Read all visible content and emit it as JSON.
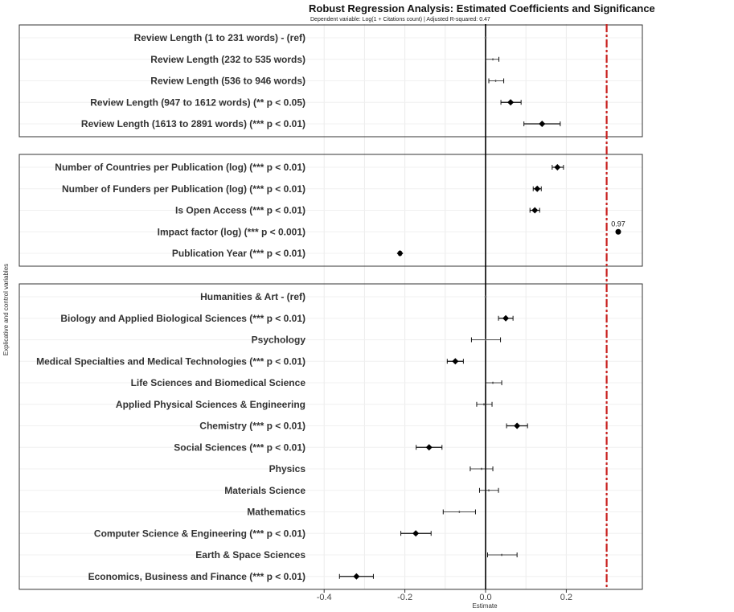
{
  "chart_data": {
    "type": "scatter",
    "title": "Robust Regression Analysis: Estimated Coefficients and Significance",
    "subtitle": "Dependent variable: Log(1 + Citations count) | Adjusted R-squared: 0.47",
    "xlabel": "Estimate",
    "ylabel": "Explicative and control variables",
    "xlim": [
      -0.4,
      0.38
    ],
    "xticks": [
      "-0.4",
      "-0.2",
      "0.0",
      "0.2"
    ],
    "reference_line": {
      "x": 0.3,
      "color": "#c8201e",
      "style": "dashed"
    },
    "grid": true,
    "groups": [
      {
        "rows": [
          {
            "label": "Review Length (1 to 231 words) - (ref)",
            "estimate": 0.0,
            "low": 0.0,
            "high": 0.0,
            "significant": false
          },
          {
            "label": "Review Length (232 to 535 words)",
            "estimate": 0.018,
            "low": 0.0,
            "high": 0.033,
            "significant": false
          },
          {
            "label": "Review Length (536 to 946 words)",
            "estimate": 0.025,
            "low": 0.008,
            "high": 0.045,
            "significant": false
          },
          {
            "label": "Review Length (947 to 1612 words) (** p < 0.05)",
            "estimate": 0.062,
            "low": 0.038,
            "high": 0.088,
            "significant": true
          },
          {
            "label": "Review Length (1613 to 2891 words) (*** p < 0.01)",
            "estimate": 0.14,
            "low": 0.095,
            "high": 0.185,
            "significant": true
          }
        ]
      },
      {
        "rows": [
          {
            "label": "Number of Countries per Publication (log) (*** p < 0.01)",
            "estimate": 0.178,
            "low": 0.165,
            "high": 0.193,
            "significant": true
          },
          {
            "label": "Number of Funders per Publication (log) (*** p < 0.01)",
            "estimate": 0.128,
            "low": 0.118,
            "high": 0.138,
            "significant": true
          },
          {
            "label": "Is Open Access (*** p < 0.01)",
            "estimate": 0.122,
            "low": 0.11,
            "high": 0.134,
            "significant": true
          },
          {
            "label": "Impact factor (log) (*** p < 0.001)",
            "estimate": 0.97,
            "low": 0.97,
            "high": 0.97,
            "significant": true,
            "annotation": "0.97",
            "clipped": true
          },
          {
            "label": "Publication Year (*** p < 0.01)",
            "estimate": -0.212,
            "low": -0.215,
            "high": -0.209,
            "significant": true
          }
        ]
      },
      {
        "rows": [
          {
            "label": "Humanities & Art - (ref)",
            "estimate": 0.0,
            "low": 0.0,
            "high": 0.0,
            "significant": false
          },
          {
            "label": "Biology and Applied Biological Sciences (*** p < 0.01)",
            "estimate": 0.05,
            "low": 0.032,
            "high": 0.068,
            "significant": true
          },
          {
            "label": "Psychology",
            "estimate": 0.0,
            "low": -0.035,
            "high": 0.037,
            "significant": false
          },
          {
            "label": "Medical Specialties and Medical Technologies (*** p < 0.01)",
            "estimate": -0.075,
            "low": -0.095,
            "high": -0.055,
            "significant": true
          },
          {
            "label": "Life Sciences and Biomedical Science",
            "estimate": 0.018,
            "low": 0.0,
            "high": 0.04,
            "significant": false
          },
          {
            "label": "Applied Physical Sciences & Engineering",
            "estimate": -0.004,
            "low": -0.022,
            "high": 0.016,
            "significant": false
          },
          {
            "label": "Chemistry (*** p < 0.01)",
            "estimate": 0.078,
            "low": 0.052,
            "high": 0.104,
            "significant": true
          },
          {
            "label": "Social Sciences (*** p < 0.01)",
            "estimate": -0.14,
            "low": -0.172,
            "high": -0.108,
            "significant": true
          },
          {
            "label": "Physics",
            "estimate": -0.01,
            "low": -0.038,
            "high": 0.018,
            "significant": false
          },
          {
            "label": "Materials Science",
            "estimate": 0.008,
            "low": -0.015,
            "high": 0.032,
            "significant": false
          },
          {
            "label": "Mathematics",
            "estimate": -0.065,
            "low": -0.105,
            "high": -0.025,
            "significant": false
          },
          {
            "label": "Computer Science & Engineering (*** p < 0.01)",
            "estimate": -0.173,
            "low": -0.21,
            "high": -0.135,
            "significant": true
          },
          {
            "label": "Earth & Space Sciences",
            "estimate": 0.04,
            "low": 0.005,
            "high": 0.078,
            "significant": false
          },
          {
            "label": "Economics, Business and Finance (*** p < 0.01)",
            "estimate": -0.32,
            "low": -0.362,
            "high": -0.278,
            "significant": true
          }
        ]
      }
    ]
  }
}
